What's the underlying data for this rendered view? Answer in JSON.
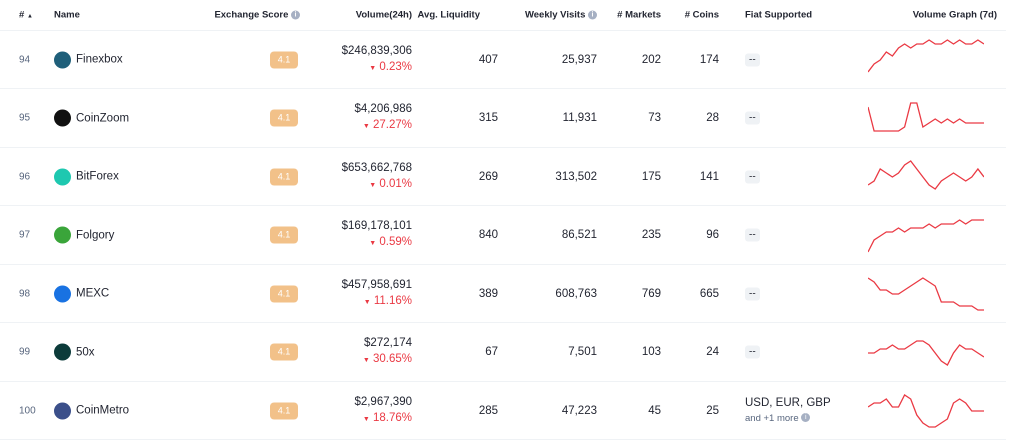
{
  "headers": {
    "rank": "#",
    "name": "Name",
    "score": "Exchange Score",
    "volume": "Volume(24h)",
    "liquidity": "Avg. Liquidity",
    "visits": "Weekly Visits",
    "markets": "# Markets",
    "coins": "# Coins",
    "fiat": "Fiat Supported",
    "graph": "Volume Graph (7d)"
  },
  "colors": {
    "spark": "#ea3943",
    "badge": "#f2c189",
    "down": "#ea3943"
  },
  "rows": [
    {
      "rank": "94",
      "name": "Finexbox",
      "logo": "#1f5f7a",
      "score": "4.1",
      "volume": "$246,839,306",
      "change": "0.23%",
      "liquidity": "407",
      "visits": "25,937",
      "markets": "202",
      "coins": "174",
      "fiat": "--",
      "spark": [
        2,
        4,
        5,
        7,
        6,
        8,
        9,
        8,
        9,
        9,
        10,
        9,
        9,
        10,
        9,
        10,
        9,
        9,
        10,
        9
      ]
    },
    {
      "rank": "95",
      "name": "CoinZoom",
      "logo": "#111111",
      "score": "4.1",
      "volume": "$4,206,986",
      "change": "27.27%",
      "liquidity": "315",
      "visits": "11,931",
      "markets": "73",
      "coins": "28",
      "fiat": "--",
      "spark": [
        8,
        2,
        2,
        2,
        2,
        2,
        3,
        9,
        9,
        3,
        4,
        5,
        4,
        5,
        4,
        5,
        4,
        4,
        4,
        4
      ]
    },
    {
      "rank": "96",
      "name": "BitForex",
      "logo": "#1ec8b0",
      "score": "4.1",
      "volume": "$653,662,768",
      "change": "0.01%",
      "liquidity": "269",
      "visits": "313,502",
      "markets": "175",
      "coins": "141",
      "fiat": "--",
      "spark": [
        3,
        4,
        7,
        6,
        5,
        6,
        8,
        9,
        7,
        5,
        3,
        2,
        4,
        5,
        6,
        5,
        4,
        5,
        7,
        5
      ]
    },
    {
      "rank": "97",
      "name": "Folgory",
      "logo": "#3aa53a",
      "score": "4.1",
      "volume": "$169,178,101",
      "change": "0.59%",
      "liquidity": "840",
      "visits": "86,521",
      "markets": "235",
      "coins": "96",
      "fiat": "--",
      "spark": [
        1,
        4,
        5,
        6,
        6,
        7,
        6,
        7,
        7,
        7,
        8,
        7,
        8,
        8,
        8,
        9,
        8,
        9,
        9,
        9
      ]
    },
    {
      "rank": "98",
      "name": "MEXC",
      "logo": "#1972e2",
      "score": "4.1",
      "volume": "$457,958,691",
      "change": "11.16%",
      "liquidity": "389",
      "visits": "608,763",
      "markets": "769",
      "coins": "665",
      "fiat": "--",
      "spark": [
        9,
        8,
        6,
        6,
        5,
        5,
        6,
        7,
        8,
        9,
        8,
        7,
        3,
        3,
        3,
        2,
        2,
        2,
        1,
        1
      ]
    },
    {
      "rank": "99",
      "name": "50x",
      "logo": "#0c3b3a",
      "score": "4.1",
      "volume": "$272,174",
      "change": "30.65%",
      "liquidity": "67",
      "visits": "7,501",
      "markets": "103",
      "coins": "24",
      "fiat": "--",
      "spark": [
        5,
        5,
        6,
        6,
        7,
        6,
        6,
        7,
        8,
        8,
        7,
        5,
        3,
        2,
        5,
        7,
        6,
        6,
        5,
        4
      ]
    },
    {
      "rank": "100",
      "name": "CoinMetro",
      "logo": "#3b4f8a",
      "score": "4.1",
      "volume": "$2,967,390",
      "change": "18.76%",
      "liquidity": "285",
      "visits": "47,223",
      "markets": "45",
      "coins": "25",
      "fiat": "USD, EUR, GBP",
      "fiat_more": "and +1 more",
      "spark": [
        6,
        7,
        7,
        8,
        6,
        6,
        9,
        8,
        4,
        2,
        1,
        1,
        2,
        3,
        7,
        8,
        7,
        5,
        5,
        5
      ]
    }
  ]
}
